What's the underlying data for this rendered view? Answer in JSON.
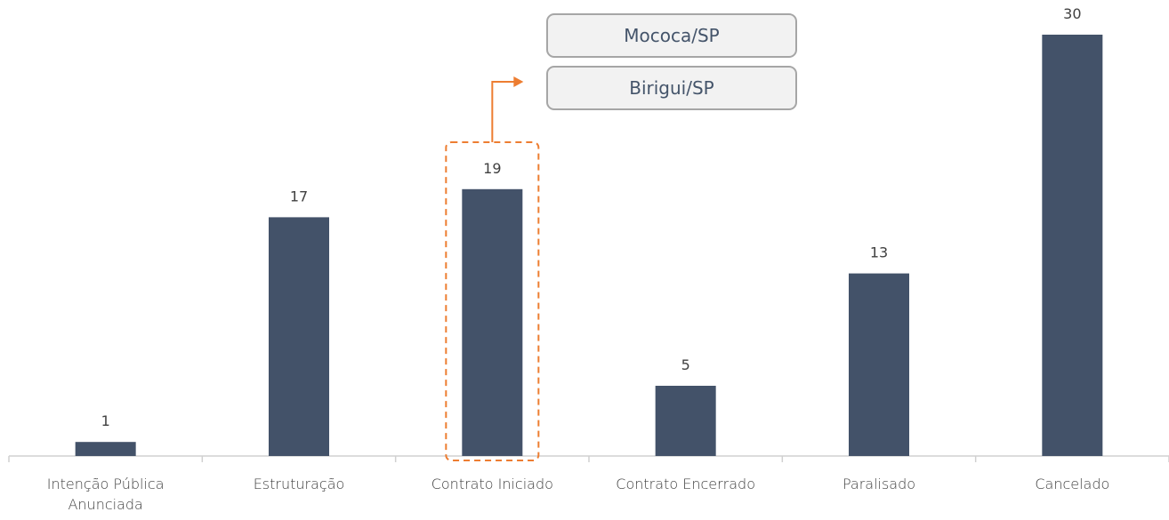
{
  "chart_data": {
    "type": "bar",
    "categories": [
      "Intenção Pública Anunciada",
      "Estruturação",
      "Contrato Iniciado",
      "Contrato Encerrado",
      "Paralisado",
      "Cancelado"
    ],
    "values": [
      1,
      17,
      19,
      5,
      13,
      30
    ],
    "color": "#435269",
    "highlight": 2,
    "highlight_color": "#ed7d31",
    "annotations": [
      "Mococa/SP",
      "Birigui/SP"
    ]
  }
}
